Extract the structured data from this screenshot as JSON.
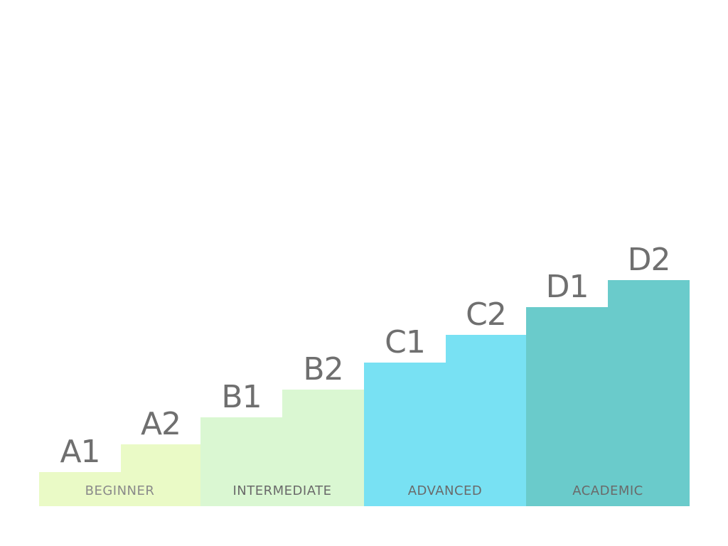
{
  "colors": {
    "beginner": "#eafac6",
    "intermediate": "#daf7d2",
    "advanced": "#78e1f3",
    "academic": "#6acbcb",
    "step_text": "#6f6f6f",
    "beginner_text": "#8a8a8a",
    "group_text": "#6a6a6a"
  },
  "steps": [
    {
      "label": "A1",
      "level": 1,
      "group": "beginner"
    },
    {
      "label": "A2",
      "level": 2,
      "group": "beginner"
    },
    {
      "label": "B1",
      "level": 3,
      "group": "intermediate"
    },
    {
      "label": "B2",
      "level": 4,
      "group": "intermediate"
    },
    {
      "label": "C1",
      "level": 5,
      "group": "advanced"
    },
    {
      "label": "C2",
      "level": 6,
      "group": "advanced"
    },
    {
      "label": "D1",
      "level": 7,
      "group": "academic"
    },
    {
      "label": "D2",
      "level": 8,
      "group": "academic"
    }
  ],
  "groups": [
    {
      "key": "beginner",
      "label": "BEGINNER"
    },
    {
      "key": "intermediate",
      "label": "INTERMEDIATE"
    },
    {
      "key": "advanced",
      "label": "ADVANCED"
    },
    {
      "key": "academic",
      "label": "ACADEMIC"
    }
  ]
}
